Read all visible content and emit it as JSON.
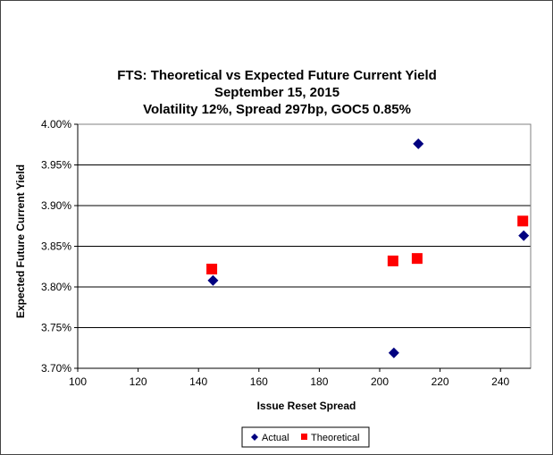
{
  "chart_data": {
    "type": "scatter",
    "title": [
      "FTS: Theoretical vs Expected Future Current Yield",
      "September 15, 2015",
      "Volatility 12%, Spread 297bp, GOC5 0.85%"
    ],
    "xlabel": "Issue Reset Spread",
    "ylabel": "Expected Future Current Yield",
    "xlim": [
      100,
      250
    ],
    "ylim": [
      3.7,
      4.0
    ],
    "xticks": [
      "100",
      "120",
      "140",
      "160",
      "180",
      "200",
      "220",
      "240"
    ],
    "xtick_values": [
      100,
      120,
      140,
      160,
      180,
      200,
      220,
      240
    ],
    "yticks": [
      "3.70%",
      "3.75%",
      "3.80%",
      "3.85%",
      "3.90%",
      "3.95%",
      "4.00%"
    ],
    "ytick_values": [
      3.7,
      3.75,
      3.8,
      3.85,
      3.9,
      3.95,
      4.0
    ],
    "grid": "horizontal",
    "legend_position": "bottom",
    "series": [
      {
        "name": "Actual",
        "marker": "diamond",
        "color": "#000080",
        "points": [
          [
            144.8,
            3.808
          ],
          [
            204.7,
            3.719
          ],
          [
            212.8,
            3.976
          ],
          [
            247.7,
            3.863
          ]
        ]
      },
      {
        "name": "Theoretical",
        "marker": "square",
        "color": "#ff0000",
        "points": [
          [
            144.4,
            3.822
          ],
          [
            204.4,
            3.832
          ],
          [
            212.4,
            3.835
          ],
          [
            247.4,
            3.881
          ]
        ]
      }
    ]
  }
}
